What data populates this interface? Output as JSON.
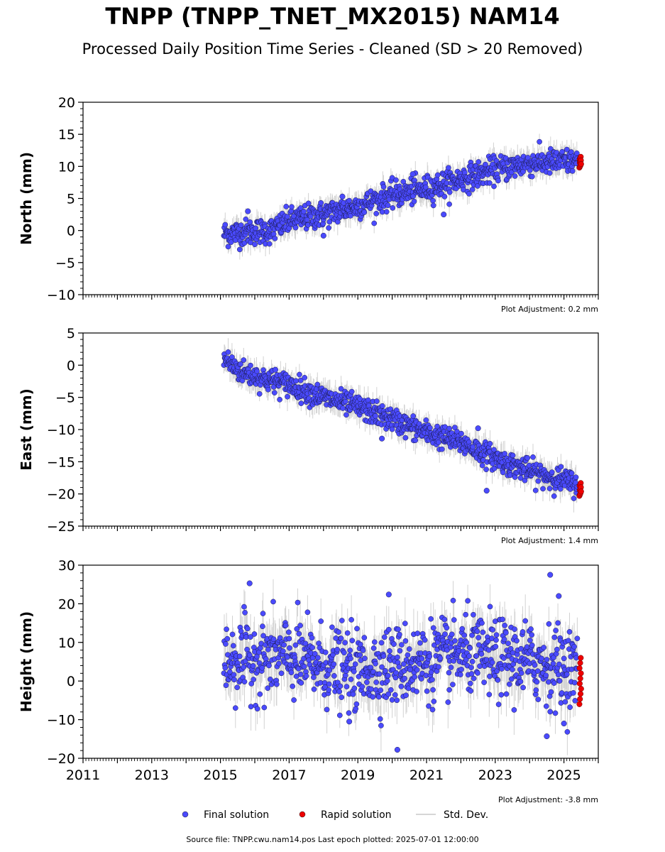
{
  "header": {
    "title": "TNPP (TNPP_TNET_MX2015) NAM14",
    "subtitle": "Processed Daily Position Time Series - Cleaned (SD > 20 Removed)"
  },
  "colors": {
    "final": "#4a4aff",
    "rapid": "#ee0000",
    "stddev": "#7f7f7f",
    "axis": "#000000"
  },
  "legend": {
    "placement": "bottom-center",
    "items": [
      {
        "label": "Final solution",
        "marker": "dot",
        "color": "#4a4aff"
      },
      {
        "label": "Rapid solution",
        "marker": "dot",
        "color": "#ee0000"
      },
      {
        "label": "Std. Dev.",
        "marker": "line",
        "color": "#c8c8c8"
      }
    ]
  },
  "footer": {
    "text": "Source file: TNPP.cwu.nam14.pos  Last epoch plotted: 2025-07-01 12:00:00"
  },
  "chart_data": [
    {
      "type": "scatter",
      "ylabel": "North (mm)",
      "xlim": [
        2011,
        2026
      ],
      "ylim": [
        -10,
        20
      ],
      "yticks": [
        -10,
        -5,
        0,
        5,
        10,
        15,
        20
      ],
      "ytick_labels": [
        "−10",
        "−5",
        "0",
        "5",
        "10",
        "15",
        "20"
      ],
      "adjustment": "Plot Adjustment: 0.2 mm",
      "grid": false,
      "final_trend": [
        [
          2015.1,
          -0.5
        ],
        [
          2016.5,
          0.0
        ],
        [
          2017.0,
          1.5
        ],
        [
          2018.0,
          2.5
        ],
        [
          2019.0,
          3.8
        ],
        [
          2020.0,
          5.5
        ],
        [
          2021.0,
          6.5
        ],
        [
          2022.0,
          8.0
        ],
        [
          2023.0,
          9.5
        ],
        [
          2024.0,
          10.5
        ],
        [
          2025.4,
          10.8
        ]
      ],
      "noise_sd": 1.0,
      "errorbar": 1.5,
      "outliers": [
        [
          2015.8,
          3.0
        ],
        [
          2018.55,
          5.3
        ],
        [
          2021.5,
          2.5
        ],
        [
          2018.0,
          -0.8
        ],
        [
          2020.6,
          8.8
        ]
      ],
      "rapid": {
        "x": [
          2025.45,
          2025.5
        ],
        "y": [
          9.8,
          11.5
        ]
      }
    },
    {
      "type": "scatter",
      "ylabel": "East (mm)",
      "xlim": [
        2011,
        2026
      ],
      "ylim": [
        -25,
        5
      ],
      "yticks": [
        -25,
        -20,
        -15,
        -10,
        -5,
        0,
        5
      ],
      "ytick_labels": [
        "−25",
        "−20",
        "−15",
        "−10",
        "−5",
        "0",
        "5"
      ],
      "adjustment": "Plot Adjustment: 1.4 mm",
      "grid": false,
      "final_trend": [
        [
          2015.1,
          1.0
        ],
        [
          2015.6,
          -1.0
        ],
        [
          2016.5,
          -2.5
        ],
        [
          2017.0,
          -3.0
        ],
        [
          2018.0,
          -5.0
        ],
        [
          2019.0,
          -6.5
        ],
        [
          2020.0,
          -8.5
        ],
        [
          2021.0,
          -10.5
        ],
        [
          2022.0,
          -12.0
        ],
        [
          2023.0,
          -14.5
        ],
        [
          2024.0,
          -16.5
        ],
        [
          2025.4,
          -18.5
        ]
      ],
      "noise_sd": 0.9,
      "errorbar": 1.6,
      "outliers": [
        [
          2022.75,
          -19.5
        ],
        [
          2019.7,
          -11.4
        ],
        [
          2016.6,
          -0.7
        ],
        [
          2022.5,
          -9.8
        ]
      ],
      "rapid": {
        "x": [
          2025.45,
          2025.5
        ],
        "y": [
          -20.3,
          -18.3
        ]
      }
    },
    {
      "type": "scatter",
      "ylabel": "Height (mm)",
      "xlim": [
        2011,
        2026
      ],
      "ylim": [
        -20,
        30
      ],
      "yticks": [
        -20,
        -10,
        0,
        10,
        20,
        30
      ],
      "ytick_labels": [
        "−20",
        "−10",
        "0",
        "10",
        "20",
        "30"
      ],
      "xticks": [
        2011,
        2013,
        2015,
        2017,
        2019,
        2021,
        2023,
        2025
      ],
      "xtick_labels": [
        "2011",
        "2013",
        "2015",
        "2017",
        "2019",
        "2021",
        "2023",
        "2025"
      ],
      "adjustment": "Plot Adjustment: -3.8 mm",
      "grid": false,
      "final_trend": [
        [
          2015.1,
          5.0
        ],
        [
          2016.0,
          6.0
        ],
        [
          2017.0,
          6.0
        ],
        [
          2018.0,
          4.0
        ],
        [
          2019.0,
          2.5
        ],
        [
          2020.0,
          4.0
        ],
        [
          2021.0,
          5.0
        ],
        [
          2022.0,
          7.0
        ],
        [
          2023.0,
          6.0
        ],
        [
          2024.0,
          5.0
        ],
        [
          2025.4,
          3.0
        ]
      ],
      "noise_sd": 5.0,
      "errorbar": 5.0,
      "outliers": [
        [
          2015.85,
          25.3
        ],
        [
          2020.15,
          -17.8
        ],
        [
          2024.6,
          27.5
        ],
        [
          2024.85,
          22.0
        ],
        [
          2024.5,
          -14.3
        ],
        [
          2019.9,
          22.4
        ],
        [
          2025.0,
          -11.0
        ],
        [
          2018.75,
          -10.5
        ]
      ],
      "rapid": {
        "x": [
          2025.45,
          2025.5
        ],
        "y": [
          -6.0,
          6.0
        ]
      }
    }
  ]
}
